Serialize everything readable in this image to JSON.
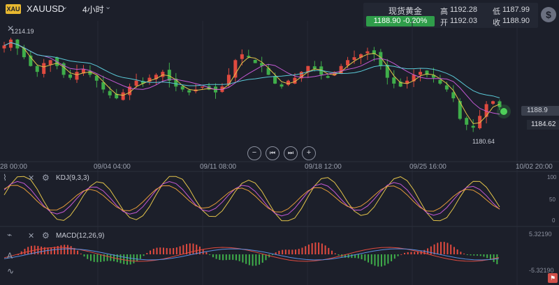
{
  "symbol": {
    "badge": "XAU",
    "name": "XAUUSD",
    "chevron": "⌄",
    "timeframe": "4小时",
    "tf_chevron": "⌄"
  },
  "quote": {
    "name": "现货黄金",
    "price_change": "1188.90  -0.20%",
    "high_label": "高",
    "high": "1192.28",
    "low_label": "低",
    "low": "1187.99",
    "open_label": "开",
    "open": "1192.03",
    "close_label": "收",
    "close": "1188.90"
  },
  "dollar_icon": "$",
  "main_chart": {
    "max_label": "1214.19",
    "min_label": "1180.64",
    "current_price_tag": "1188.9",
    "alt_price_tag": "1184.62",
    "x_labels": [
      "28 00:00",
      "09/04 04:00",
      "09/11 08:00",
      "09/18 12:00",
      "09/25 16:00",
      "10/02 20:00"
    ]
  },
  "controls": {
    "zoom_out": "−",
    "prev": "⏮",
    "next": "⏭",
    "zoom_in": "+"
  },
  "kdj": {
    "label": "KDJ(9,3,3)",
    "y_labels": [
      "100",
      "50",
      "0"
    ]
  },
  "macd": {
    "label": "MACD(12,26,9)",
    "y_top": "5.32190",
    "y_bottom": "-5.32190"
  },
  "colors": {
    "up": "#e04a3f",
    "down": "#3fae4a",
    "ma1": "#e2c34a",
    "ma2": "#c65ad6",
    "ma3": "#5ac8d6",
    "bg": "#1c1f2a"
  },
  "chart_data": {
    "type": "candlestick",
    "title": "",
    "x_labels": [
      "28 00:00",
      "09/04 04:00",
      "09/11 08:00",
      "09/18 12:00",
      "09/25 16:00",
      "10/02 20:00"
    ],
    "y_markers": {
      "high": 1214.19,
      "low": 1180.64,
      "current": 1188.9,
      "tag": 1184.62
    },
    "closes_approx": [
      1210,
      1212,
      1209,
      1206,
      1203,
      1201,
      1204,
      1205,
      1203,
      1200,
      1199,
      1201,
      1202,
      1200,
      1198,
      1195,
      1193,
      1192,
      1194,
      1196,
      1198,
      1197,
      1199,
      1200,
      1201,
      1198,
      1196,
      1195,
      1194,
      1195,
      1196,
      1195,
      1194,
      1196,
      1200,
      1205,
      1207,
      1206,
      1204,
      1203,
      1200,
      1197,
      1196,
      1198,
      1199,
      1201,
      1203,
      1202,
      1200,
      1199,
      1201,
      1203,
      1205,
      1206,
      1207,
      1208,
      1207,
      1203,
      1199,
      1197,
      1196,
      1198,
      1200,
      1201,
      1200,
      1199,
      1197,
      1195,
      1192,
      1185,
      1183,
      1182,
      1186,
      1190,
      1191,
      1189
    ]
  }
}
